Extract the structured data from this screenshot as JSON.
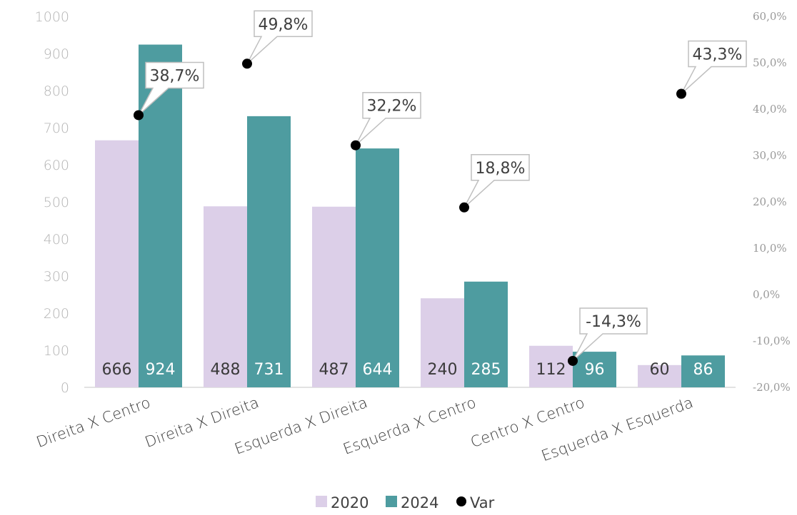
{
  "chart_data": {
    "type": "bar",
    "categories": [
      "Direita X Centro",
      "Direita X Direita",
      "Esquerda X Direita",
      "Esquerda X Centro",
      "Centro X Centro",
      "Esquerda X Esquerda"
    ],
    "series": [
      {
        "name": "2020",
        "type": "bar",
        "axis": "left",
        "color": "#dccfe8",
        "values": [
          666,
          488,
          487,
          240,
          112,
          60
        ]
      },
      {
        "name": "2024",
        "type": "bar",
        "axis": "left",
        "color": "#4e9ca0",
        "values": [
          924,
          731,
          644,
          285,
          96,
          86
        ]
      },
      {
        "name": "Var",
        "type": "scatter",
        "axis": "right",
        "color": "#000000",
        "values": [
          38.7,
          49.8,
          32.2,
          18.8,
          -14.3,
          43.3
        ]
      }
    ],
    "data_labels": {
      "2020": [
        "666",
        "488",
        "487",
        "240",
        "112",
        "60"
      ],
      "2024": [
        "924",
        "731",
        "644",
        "285",
        "96",
        "86"
      ],
      "Var": [
        "38,7%",
        "49,8%",
        "32,2%",
        "18,8%",
        "-14,3%",
        "43,3%"
      ]
    },
    "y_left": {
      "min": 0,
      "max": 1000,
      "step": 100,
      "ticks": [
        "0",
        "100",
        "200",
        "300",
        "400",
        "500",
        "600",
        "700",
        "800",
        "900",
        "1000"
      ]
    },
    "y_right": {
      "min": -20,
      "max": 60,
      "step": 10,
      "ticks": [
        "-20,0%",
        "-10,0%",
        "0,0%",
        "10,0%",
        "20,0%",
        "30,0%",
        "40,0%",
        "50,0%",
        "60,0%"
      ]
    },
    "legend": {
      "position": "bottom",
      "entries": [
        "2020",
        "2024",
        "Var"
      ]
    },
    "grid": false
  }
}
